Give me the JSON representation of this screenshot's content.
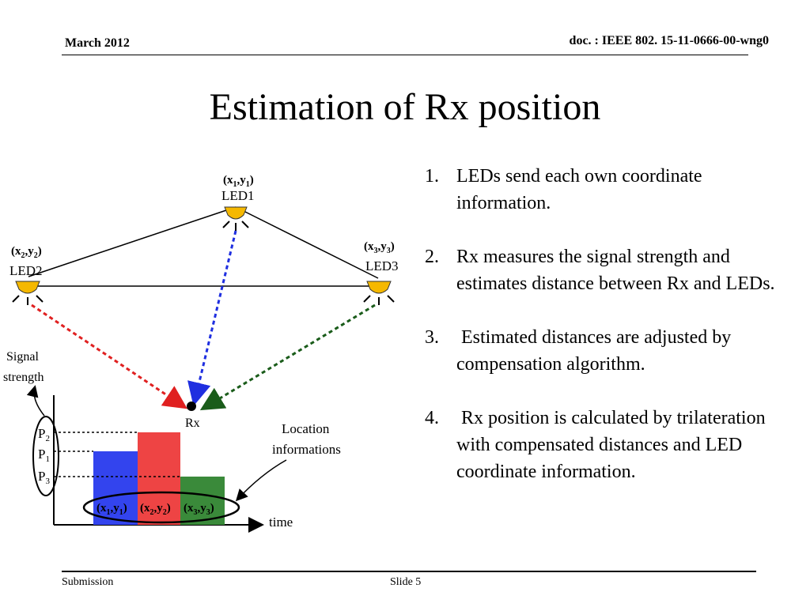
{
  "header": {
    "date": "March 2012",
    "doc_id": "doc. : IEEE 802. 15-11-0666-00-wng0"
  },
  "title": "Estimation of Rx position",
  "figure": {
    "led1": {
      "coord_x": "x",
      "coord_x_sub": "1",
      "coord_y": "y",
      "coord_y_sub": "1",
      "label": "LED1"
    },
    "led2": {
      "coord_x": "x",
      "coord_x_sub": "2",
      "coord_y": "y",
      "coord_y_sub": "2",
      "label": "LED2"
    },
    "led3": {
      "coord_x": "x",
      "coord_x_sub": "3",
      "coord_y": "y",
      "coord_y_sub": "3",
      "label": "LED3"
    },
    "rx_label": "Rx",
    "signal_label_1": "Signal",
    "signal_label_2": "strength",
    "p_labels": [
      {
        "p": "P",
        "sub": "2"
      },
      {
        "p": "P",
        "sub": "1"
      },
      {
        "p": "P",
        "sub": "3"
      }
    ],
    "location_label_1": "Location",
    "location_label_2": "informations",
    "time_label": "time",
    "colors": {
      "led_fill": "#f5b800",
      "led1_arrow": "#1f2fe0",
      "led2_arrow": "#e02020",
      "led3_arrow": "#1a5c1a",
      "bar1": "#3344ee",
      "bar2": "#ee4444",
      "bar3": "#3a8a3a"
    }
  },
  "steps": [
    {
      "num": "1.",
      "text": "LEDs send each own coordinate information."
    },
    {
      "num": "2.",
      "text": "Rx measures the signal strength and estimates distance between Rx and LEDs."
    },
    {
      "num": "3.",
      "text": " Estimated distances are adjusted by compensation algorithm."
    },
    {
      "num": "4.",
      "text": " Rx position is calculated by trilateration with compensated distances and LED coordinate information."
    }
  ],
  "footer": {
    "submission": "Submission",
    "slide": "Slide 5"
  }
}
